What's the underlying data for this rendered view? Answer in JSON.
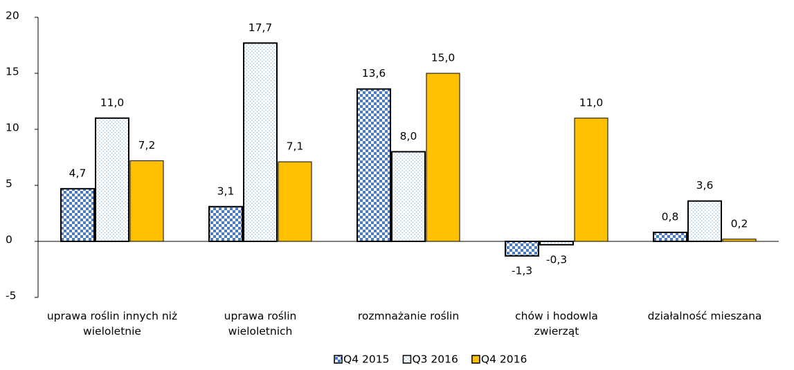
{
  "chart_data": {
    "type": "bar",
    "categories": [
      "uprawa roślin innych niż wieloletnie",
      "uprawa roślin wieloletnich",
      "rozmnażanie roślin",
      "chów i hodowla zwierząt",
      "działalność mieszana"
    ],
    "series": [
      {
        "name": "Q4 2015",
        "color": "#4a7cc4",
        "pattern": "checker",
        "values": [
          4.7,
          3.1,
          13.6,
          -1.3,
          0.8
        ],
        "value_labels": [
          "4,7",
          "3,1",
          "13,6",
          "-1,3",
          "0,8"
        ]
      },
      {
        "name": "Q3 2016",
        "color": "#9dc3e6",
        "pattern": "dots",
        "values": [
          11.0,
          17.7,
          8.0,
          -0.3,
          3.6
        ],
        "value_labels": [
          "11,0",
          "17,7",
          "8,0",
          "-0,3",
          "3,6"
        ]
      },
      {
        "name": "Q4 2016",
        "color": "#ffc000",
        "pattern": "solid",
        "values": [
          7.2,
          7.1,
          15.0,
          11.0,
          0.2
        ],
        "value_labels": [
          "7,2",
          "7,1",
          "15,0",
          "11,0",
          "0,2"
        ]
      }
    ],
    "ylim": [
      -5,
      20
    ],
    "yticks": [
      -5,
      0,
      5,
      10,
      15,
      20
    ],
    "grid": false,
    "legend": "bottom"
  }
}
